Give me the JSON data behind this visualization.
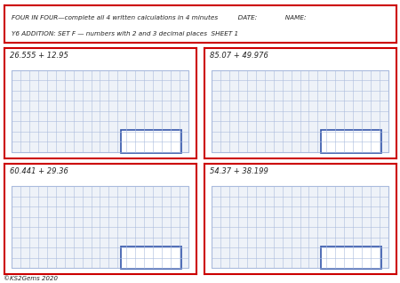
{
  "title_line1": "FOUR IN FOUR—complete all 4 written calculations in 4 minutes          DATE:              NAME:",
  "title_line2": "Y6 ADDITION: SET F — numbers with 2 and 3 decimal places  SHEET 1",
  "problems": [
    "26.555 + 12.95",
    "85.07 + 49.976",
    "60.441 + 29.36",
    "54.37 + 38.199"
  ],
  "footer": "©KS2Gems 2020",
  "outer_border_color": "#cc0000",
  "grid_color": "#aabbdd",
  "grid_fill": "#eef2f8",
  "answer_box_color": "#3355aa",
  "bg_color": "#ffffff",
  "label_color": "#222222"
}
